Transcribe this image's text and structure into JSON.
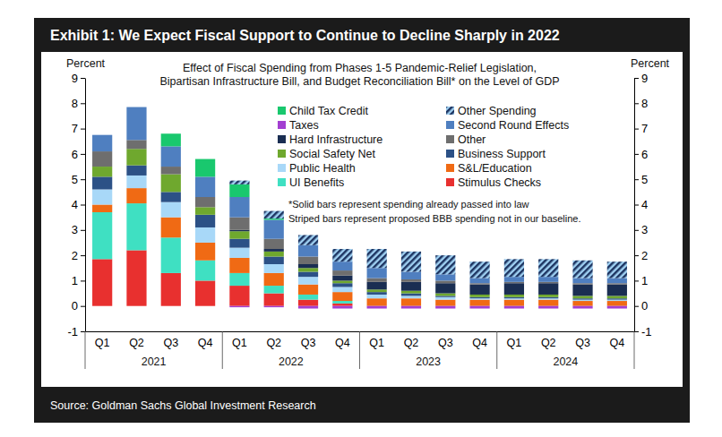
{
  "chart_data": {
    "type": "bar",
    "title": "Exhibit 1: We Expect Fiscal Support to Continue to Decline Sharply in 2022",
    "subtitle": [
      "Effect of Fiscal Spending from Phases 1-5 Pandemic-Relief Legislation,",
      "Bipartisan Infrastructure Bill, and Budget Reconciliation Bill* on the Level of GDP"
    ],
    "y_label": "Percent",
    "y2_label": "Percent",
    "annotations": [
      "*Solid bars represent spending already passed into law",
      "Striped bars represent proposed BBB spending not in our baseline."
    ],
    "source": "Source: Goldman Sachs Global Investment Research",
    "categories": [
      "Q1",
      "Q2",
      "Q3",
      "Q4",
      "Q1",
      "Q2",
      "Q3",
      "Q4",
      "Q1",
      "Q2",
      "Q3",
      "Q4",
      "Q1",
      "Q2",
      "Q3",
      "Q4"
    ],
    "x_groups": [
      "2021",
      "2022",
      "2023",
      "2024"
    ],
    "stacked": true,
    "grid": false,
    "legend": "top",
    "ylim": [
      -1,
      9
    ],
    "yticks": [
      -1,
      0,
      1,
      2,
      3,
      4,
      5,
      6,
      7,
      8,
      9
    ],
    "y2lim": [
      -1,
      9
    ],
    "y2ticks": [
      -1,
      0,
      1,
      2,
      3,
      4,
      5,
      6,
      7,
      8,
      9
    ],
    "series": [
      {
        "name": "Child Tax Credit",
        "color": "#19c86e",
        "values": [
          0,
          0,
          0.5,
          0.7,
          0.5,
          0.05,
          0,
          0,
          0,
          0,
          0,
          0,
          0,
          0,
          0,
          0
        ]
      },
      {
        "name": "Taxes",
        "color": "#a33fd1",
        "values": [
          0,
          0,
          0,
          0,
          -0.05,
          -0.05,
          -0.1,
          -0.1,
          -0.1,
          -0.1,
          -0.1,
          -0.1,
          -0.1,
          -0.1,
          -0.1,
          -0.1
        ]
      },
      {
        "name": "Hard Infrastructure",
        "color": "#1a2e52",
        "values": [
          0,
          0,
          0,
          0,
          0.05,
          0.1,
          0.15,
          0.2,
          0.3,
          0.35,
          0.4,
          0.4,
          0.45,
          0.45,
          0.45,
          0.45
        ]
      },
      {
        "name": "Social Safety Net",
        "color": "#6fa82e",
        "values": [
          0.4,
          0.65,
          0.7,
          0.3,
          0.3,
          0.2,
          0.15,
          0.1,
          0.1,
          0.1,
          0.1,
          0.1,
          0.1,
          0.1,
          0.1,
          0.1
        ]
      },
      {
        "name": "Public Health",
        "color": "#a8d8f8",
        "values": [
          0.6,
          0.5,
          0.6,
          0.6,
          0.4,
          0.35,
          0.3,
          0.2,
          0.15,
          0.1,
          0.1,
          0.05,
          0.05,
          0.05,
          0.05,
          0.05
        ]
      },
      {
        "name": "UI Benefits",
        "color": "#3fe0c2",
        "values": [
          1.85,
          1.85,
          1.4,
          0.8,
          0.5,
          0.3,
          0.2,
          0.1,
          0,
          0,
          0,
          0,
          0,
          0,
          0,
          0
        ]
      },
      {
        "name": "Other Spending",
        "color": "#1d3461",
        "line_style": "hatched",
        "values": [
          0,
          0,
          0,
          0,
          0.15,
          0.3,
          0.4,
          0.5,
          0.75,
          0.8,
          0.75,
          0.65,
          0.7,
          0.7,
          0.7,
          0.65
        ]
      },
      {
        "name": "Second Round Effects",
        "color": "#4f7fc0",
        "values": [
          0.65,
          1.3,
          0.8,
          0.8,
          0.8,
          0.75,
          0.45,
          0.35,
          0.4,
          0.3,
          0.25,
          0.2,
          0.2,
          0.2,
          0.2,
          0.2
        ]
      },
      {
        "name": "Other",
        "color": "#6e6e6e",
        "values": [
          0.6,
          0.35,
          0.3,
          0.4,
          0.5,
          0.4,
          0.3,
          0.2,
          0.15,
          0.1,
          0.1,
          0.05,
          0.05,
          0.05,
          0.05,
          0.05
        ]
      },
      {
        "name": "Business Support",
        "color": "#2c5186",
        "values": [
          0.5,
          0.4,
          0.4,
          0.5,
          0.35,
          0.3,
          0.2,
          0.15,
          0.1,
          0.1,
          0.05,
          0.05,
          0.05,
          0.05,
          0.05,
          0.05
        ]
      },
      {
        "name": "S&L/Education",
        "color": "#f06a14",
        "values": [
          0.3,
          0.6,
          0.8,
          0.7,
          0.6,
          0.5,
          0.4,
          0.35,
          0.3,
          0.3,
          0.25,
          0.25,
          0.25,
          0.25,
          0.2,
          0.2
        ]
      },
      {
        "name": "Stimulus Checks",
        "color": "#e8302f",
        "values": [
          1.85,
          2.2,
          1.3,
          1.0,
          0.8,
          0.5,
          0.25,
          0.1,
          0,
          0,
          0,
          0,
          0,
          0,
          0,
          0
        ]
      }
    ]
  }
}
